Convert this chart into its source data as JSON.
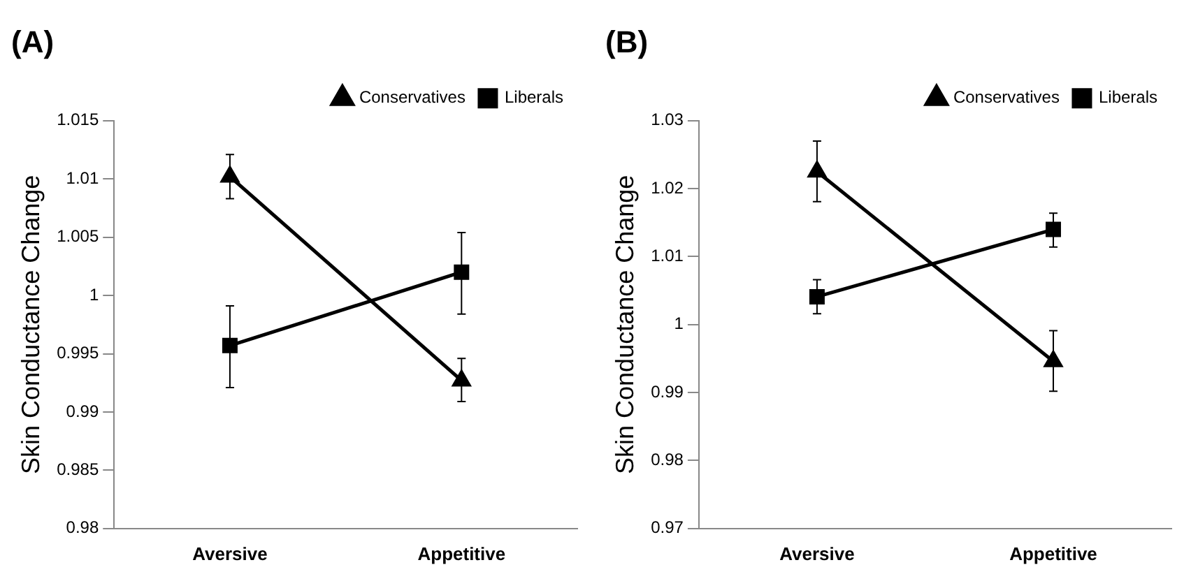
{
  "chart_data": [
    {
      "type": "line",
      "title": "(A)",
      "ylabel": "Skin Conductance Change",
      "categories": [
        "Aversive",
        "Appetitive"
      ],
      "ylim": [
        0.98,
        1.015
      ],
      "yticks": [
        0.98,
        0.985,
        0.99,
        0.995,
        1,
        1.005,
        1.01,
        1.015
      ],
      "legend": "top right",
      "grid": false,
      "series": [
        {
          "name": "Conservatives",
          "color": "#000000",
          "marker": "triangle",
          "values": [
            1.0102,
            0.9927
          ],
          "errors": [
            [
              1.0083,
              1.0121
            ],
            [
              0.9909,
              0.9946
            ]
          ]
        },
        {
          "name": "Liberals",
          "color": "#000000",
          "marker": "square",
          "values": [
            0.9957,
            1.002
          ],
          "errors": [
            [
              0.9921,
              0.9991
            ],
            [
              0.9984,
              1.0054
            ]
          ]
        }
      ]
    },
    {
      "type": "line",
      "title": "(B)",
      "ylabel": "Skin Conductance Change",
      "categories": [
        "Aversive",
        "Appetitive"
      ],
      "ylim": [
        0.97,
        1.03
      ],
      "yticks": [
        0.97,
        0.98,
        0.99,
        1,
        1.01,
        1.02,
        1.03
      ],
      "legend": "top right",
      "grid": false,
      "series": [
        {
          "name": "Conservatives",
          "color": "#000000",
          "marker": "triangle",
          "values": [
            1.0225,
            0.9946
          ],
          "errors": [
            [
              1.0181,
              1.027
            ],
            [
              0.9902,
              0.9991
            ]
          ]
        },
        {
          "name": "Liberals",
          "color": "#000000",
          "marker": "square",
          "values": [
            1.0041,
            1.014
          ],
          "errors": [
            [
              1.0016,
              1.0066
            ],
            [
              1.0114,
              1.0164
            ]
          ]
        }
      ]
    }
  ]
}
